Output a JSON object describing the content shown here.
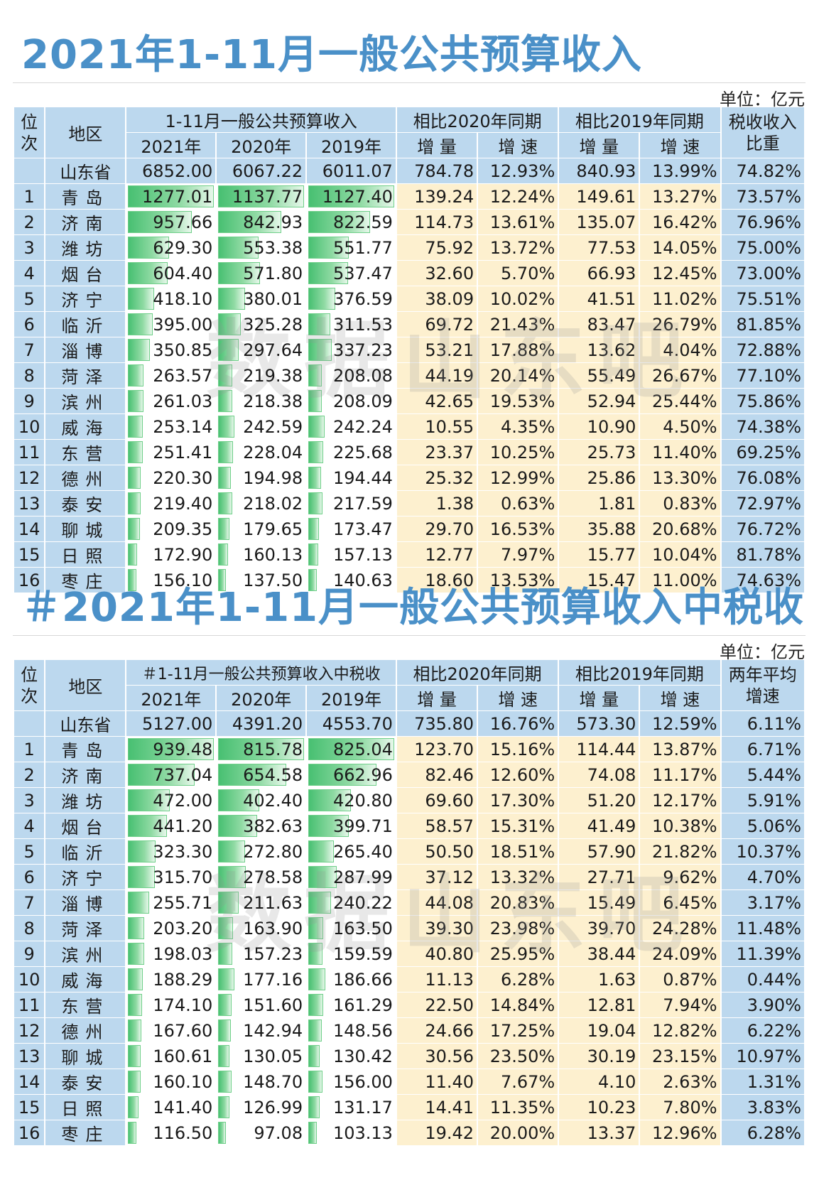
{
  "section1": {
    "title": "2021年1-11月一般公共预算收入",
    "unit": "单位：亿元",
    "header": {
      "rank": "位次",
      "region": "地区",
      "group1": "1-11月一般公共预算收入",
      "group2": "相比2020年同期",
      "group3": "相比2019年同期",
      "last": "税收收入比重",
      "y2021": "2021年",
      "y2020": "2020年",
      "y2019": "2019年",
      "inc": "增 量",
      "rate": "增 速"
    },
    "total": [
      "山东省",
      "6852.00",
      "6067.22",
      "6011.07",
      "784.78",
      "12.93%",
      "840.93",
      "13.99%",
      "74.82%"
    ],
    "rows": [
      [
        "1",
        "青岛",
        "1277.01",
        "1137.77",
        "1127.40",
        "139.24",
        "12.24%",
        "149.61",
        "13.27%",
        "73.57%"
      ],
      [
        "2",
        "济南",
        "957.66",
        "842.93",
        "822.59",
        "114.73",
        "13.61%",
        "135.07",
        "16.42%",
        "76.96%"
      ],
      [
        "3",
        "潍坊",
        "629.30",
        "553.38",
        "551.77",
        "75.92",
        "13.72%",
        "77.53",
        "14.05%",
        "75.00%"
      ],
      [
        "4",
        "烟台",
        "604.40",
        "571.80",
        "537.47",
        "32.60",
        "5.70%",
        "66.93",
        "12.45%",
        "73.00%"
      ],
      [
        "5",
        "济宁",
        "418.10",
        "380.01",
        "376.59",
        "38.09",
        "10.02%",
        "41.51",
        "11.02%",
        "75.51%"
      ],
      [
        "6",
        "临沂",
        "395.00",
        "325.28",
        "311.53",
        "69.72",
        "21.43%",
        "83.47",
        "26.79%",
        "81.85%"
      ],
      [
        "7",
        "淄博",
        "350.85",
        "297.64",
        "337.23",
        "53.21",
        "17.88%",
        "13.62",
        "4.04%",
        "72.88%"
      ],
      [
        "8",
        "菏泽",
        "263.57",
        "219.38",
        "208.08",
        "44.19",
        "20.14%",
        "55.49",
        "26.67%",
        "77.10%"
      ],
      [
        "9",
        "滨州",
        "261.03",
        "218.38",
        "208.09",
        "42.65",
        "19.53%",
        "52.94",
        "25.44%",
        "75.86%"
      ],
      [
        "10",
        "威海",
        "253.14",
        "242.59",
        "242.24",
        "10.55",
        "4.35%",
        "10.90",
        "4.50%",
        "74.38%"
      ],
      [
        "11",
        "东营",
        "251.41",
        "228.04",
        "225.68",
        "23.37",
        "10.25%",
        "25.73",
        "11.40%",
        "69.25%"
      ],
      [
        "12",
        "德州",
        "220.30",
        "194.98",
        "194.44",
        "25.32",
        "12.99%",
        "25.86",
        "13.30%",
        "76.08%"
      ],
      [
        "13",
        "泰安",
        "219.40",
        "218.02",
        "217.59",
        "1.38",
        "0.63%",
        "1.81",
        "0.83%",
        "72.97%"
      ],
      [
        "14",
        "聊城",
        "209.35",
        "179.65",
        "173.47",
        "29.70",
        "16.53%",
        "35.88",
        "20.68%",
        "76.72%"
      ],
      [
        "15",
        "日照",
        "172.90",
        "160.13",
        "157.13",
        "12.77",
        "7.97%",
        "15.77",
        "10.04%",
        "81.78%"
      ],
      [
        "16",
        "枣庄",
        "156.10",
        "137.50",
        "140.63",
        "18.60",
        "13.53%",
        "15.47",
        "11.00%",
        "74.63%"
      ]
    ]
  },
  "section2": {
    "title": "＃2021年1-11月一般公共预算收入中税收",
    "unit": "单位：亿元",
    "header": {
      "rank": "位次",
      "region": "地区",
      "group1": "＃1-11月一般公共预算收入中税收",
      "group2": "相比2020年同期",
      "group3": "相比2019年同期",
      "last": "两年平均增速",
      "y2021": "2021年",
      "y2020": "2020年",
      "y2019": "2019年",
      "inc": "增 量",
      "rate": "增 速"
    },
    "total": [
      "山东省",
      "5127.00",
      "4391.20",
      "4553.70",
      "735.80",
      "16.76%",
      "573.30",
      "12.59%",
      "6.11%"
    ],
    "rows": [
      [
        "1",
        "青岛",
        "939.48",
        "815.78",
        "825.04",
        "123.70",
        "15.16%",
        "114.44",
        "13.87%",
        "6.71%"
      ],
      [
        "2",
        "济南",
        "737.04",
        "654.58",
        "662.96",
        "82.46",
        "12.60%",
        "74.08",
        "11.17%",
        "5.44%"
      ],
      [
        "3",
        "潍坊",
        "472.00",
        "402.40",
        "420.80",
        "69.60",
        "17.30%",
        "51.20",
        "12.17%",
        "5.91%"
      ],
      [
        "4",
        "烟台",
        "441.20",
        "382.63",
        "399.71",
        "58.57",
        "15.31%",
        "41.49",
        "10.38%",
        "5.06%"
      ],
      [
        "5",
        "临沂",
        "323.30",
        "272.80",
        "265.40",
        "50.50",
        "18.51%",
        "57.90",
        "21.82%",
        "10.37%"
      ],
      [
        "6",
        "济宁",
        "315.70",
        "278.58",
        "287.99",
        "37.12",
        "13.32%",
        "27.71",
        "9.62%",
        "4.70%"
      ],
      [
        "7",
        "淄博",
        "255.71",
        "211.63",
        "240.22",
        "44.08",
        "20.83%",
        "15.49",
        "6.45%",
        "3.17%"
      ],
      [
        "8",
        "菏泽",
        "203.20",
        "163.90",
        "163.50",
        "39.30",
        "23.98%",
        "39.70",
        "24.28%",
        "11.48%"
      ],
      [
        "9",
        "滨州",
        "198.03",
        "157.23",
        "159.59",
        "40.80",
        "25.95%",
        "38.44",
        "24.09%",
        "11.39%"
      ],
      [
        "10",
        "威海",
        "188.29",
        "177.16",
        "186.66",
        "11.13",
        "6.28%",
        "1.63",
        "0.87%",
        "0.44%"
      ],
      [
        "11",
        "东营",
        "174.10",
        "151.60",
        "161.29",
        "22.50",
        "14.84%",
        "12.81",
        "7.94%",
        "3.90%"
      ],
      [
        "12",
        "德州",
        "167.60",
        "142.94",
        "148.56",
        "24.66",
        "17.25%",
        "19.04",
        "12.82%",
        "6.22%"
      ],
      [
        "13",
        "聊城",
        "160.61",
        "130.05",
        "130.42",
        "30.56",
        "23.50%",
        "30.19",
        "23.15%",
        "10.97%"
      ],
      [
        "14",
        "泰安",
        "160.10",
        "148.70",
        "156.00",
        "11.40",
        "7.67%",
        "4.10",
        "2.63%",
        "1.31%"
      ],
      [
        "15",
        "日照",
        "141.40",
        "126.99",
        "131.17",
        "14.41",
        "11.35%",
        "10.23",
        "7.80%",
        "3.83%"
      ],
      [
        "16",
        "枣庄",
        "116.50",
        "97.08",
        "103.13",
        "19.42",
        "20.00%",
        "13.37",
        "12.96%",
        "6.28%"
      ]
    ]
  },
  "watermark": "数据山东吧",
  "colors": {
    "title": "#4a90c8",
    "header_bg": "#bcd8ee",
    "value_bg": "#fdf0cf",
    "bar": "#48c072"
  }
}
